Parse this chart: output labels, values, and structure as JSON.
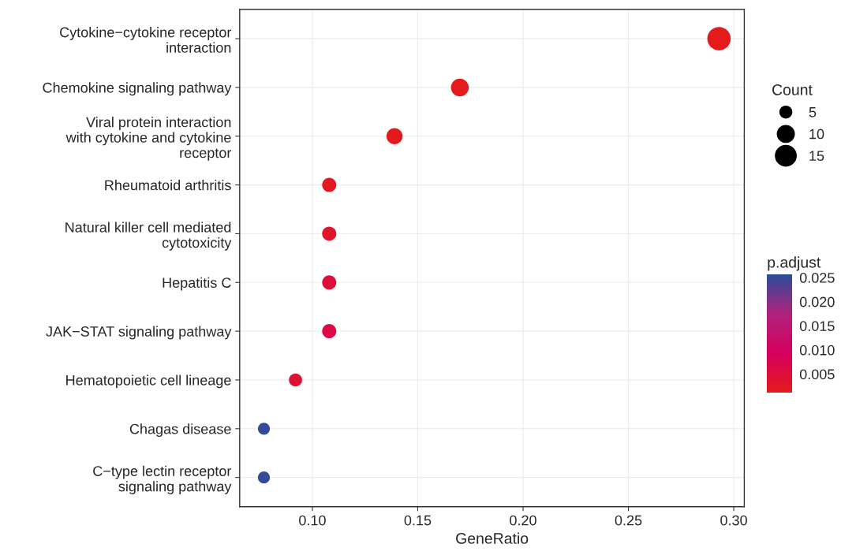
{
  "chart_data": {
    "type": "bubble",
    "orientation": "horizontal",
    "xlabel": "GeneRatio",
    "legend_title": "Count",
    "clabel": "p.adjust",
    "categories": [
      "Cytokine−cytokine receptor\ninteraction",
      "Chemokine signaling pathway",
      "Viral protein interaction\nwith cytokine and cytokine\nreceptor",
      "Rheumatoid arthritis",
      "Natural killer cell mediated\ncytotoxicity",
      "Hepatitis C",
      "JAK−STAT signaling pathway",
      "Hematopoietic cell lineage",
      "Chagas disease",
      "C−type lectin receptor\nsignaling pathway"
    ],
    "values": [
      0.293,
      0.17,
      0.139,
      0.108,
      0.108,
      0.108,
      0.108,
      0.092,
      0.077,
      0.077
    ],
    "sizes": [
      19,
      11,
      9,
      7,
      7,
      7,
      7,
      6,
      5,
      5
    ],
    "size_legend": [
      5,
      10,
      15
    ],
    "cvalues": [
      0.0012,
      0.0013,
      0.0014,
      0.002,
      0.003,
      0.005,
      0.006,
      0.004,
      0.025,
      0.025
    ],
    "clim": [
      0.0012,
      0.0257
    ],
    "cticks": [
      0.005,
      {
        "value": 0.01,
        "label": "0.010"
      },
      0.015,
      {
        "value": 0.02,
        "label": "0.020"
      },
      0.025
    ],
    "xlim": [
      0.0655,
      0.305
    ],
    "xticks": [
      {
        "value": 0.1,
        "label": "0.10"
      },
      0.15,
      {
        "value": 0.2,
        "label": "0.20"
      },
      0.25,
      {
        "value": 0.3,
        "label": "0.30"
      }
    ],
    "grid": true
  }
}
